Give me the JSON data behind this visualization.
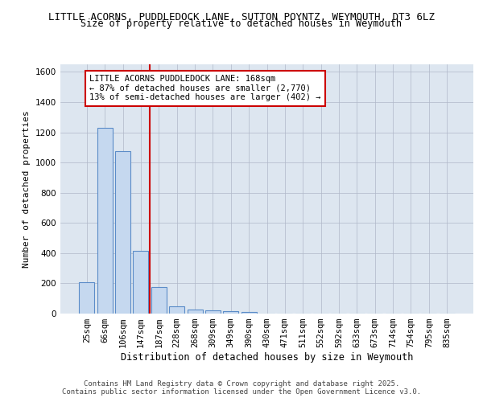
{
  "title_line1": "LITTLE ACORNS, PUDDLEDOCK LANE, SUTTON POYNTZ, WEYMOUTH, DT3 6LZ",
  "title_line2": "Size of property relative to detached houses in Weymouth",
  "xlabel": "Distribution of detached houses by size in Weymouth",
  "ylabel": "Number of detached properties",
  "categories": [
    "25sqm",
    "66sqm",
    "106sqm",
    "147sqm",
    "187sqm",
    "228sqm",
    "268sqm",
    "309sqm",
    "349sqm",
    "390sqm",
    "430sqm",
    "471sqm",
    "511sqm",
    "552sqm",
    "592sqm",
    "633sqm",
    "673sqm",
    "714sqm",
    "754sqm",
    "795sqm",
    "835sqm"
  ],
  "values": [
    205,
    1230,
    1075,
    415,
    175,
    47,
    25,
    20,
    14,
    8,
    0,
    0,
    0,
    0,
    0,
    0,
    0,
    0,
    0,
    0,
    0
  ],
  "bar_color": "#c5d8ef",
  "bar_edge_color": "#5b8cc8",
  "grid_color": "#b0b8c8",
  "bg_color": "#dde6f0",
  "vline_color": "#cc0000",
  "vline_pos": 3.5,
  "annotation_title": "LITTLE ACORNS PUDDLEDOCK LANE: 168sqm",
  "annotation_line2": "← 87% of detached houses are smaller (2,770)",
  "annotation_line3": "13% of semi-detached houses are larger (402) →",
  "annotation_box_color": "#cc0000",
  "footer_line1": "Contains HM Land Registry data © Crown copyright and database right 2025.",
  "footer_line2": "Contains public sector information licensed under the Open Government Licence v3.0.",
  "ylim": [
    0,
    1650
  ],
  "yticks": [
    0,
    200,
    400,
    600,
    800,
    1000,
    1200,
    1400,
    1600
  ],
  "title1_fontsize": 9.0,
  "title2_fontsize": 8.5,
  "ylabel_fontsize": 8.0,
  "xlabel_fontsize": 8.5,
  "tick_fontsize": 7.5,
  "ann_fontsize": 7.5,
  "footer_fontsize": 6.5
}
